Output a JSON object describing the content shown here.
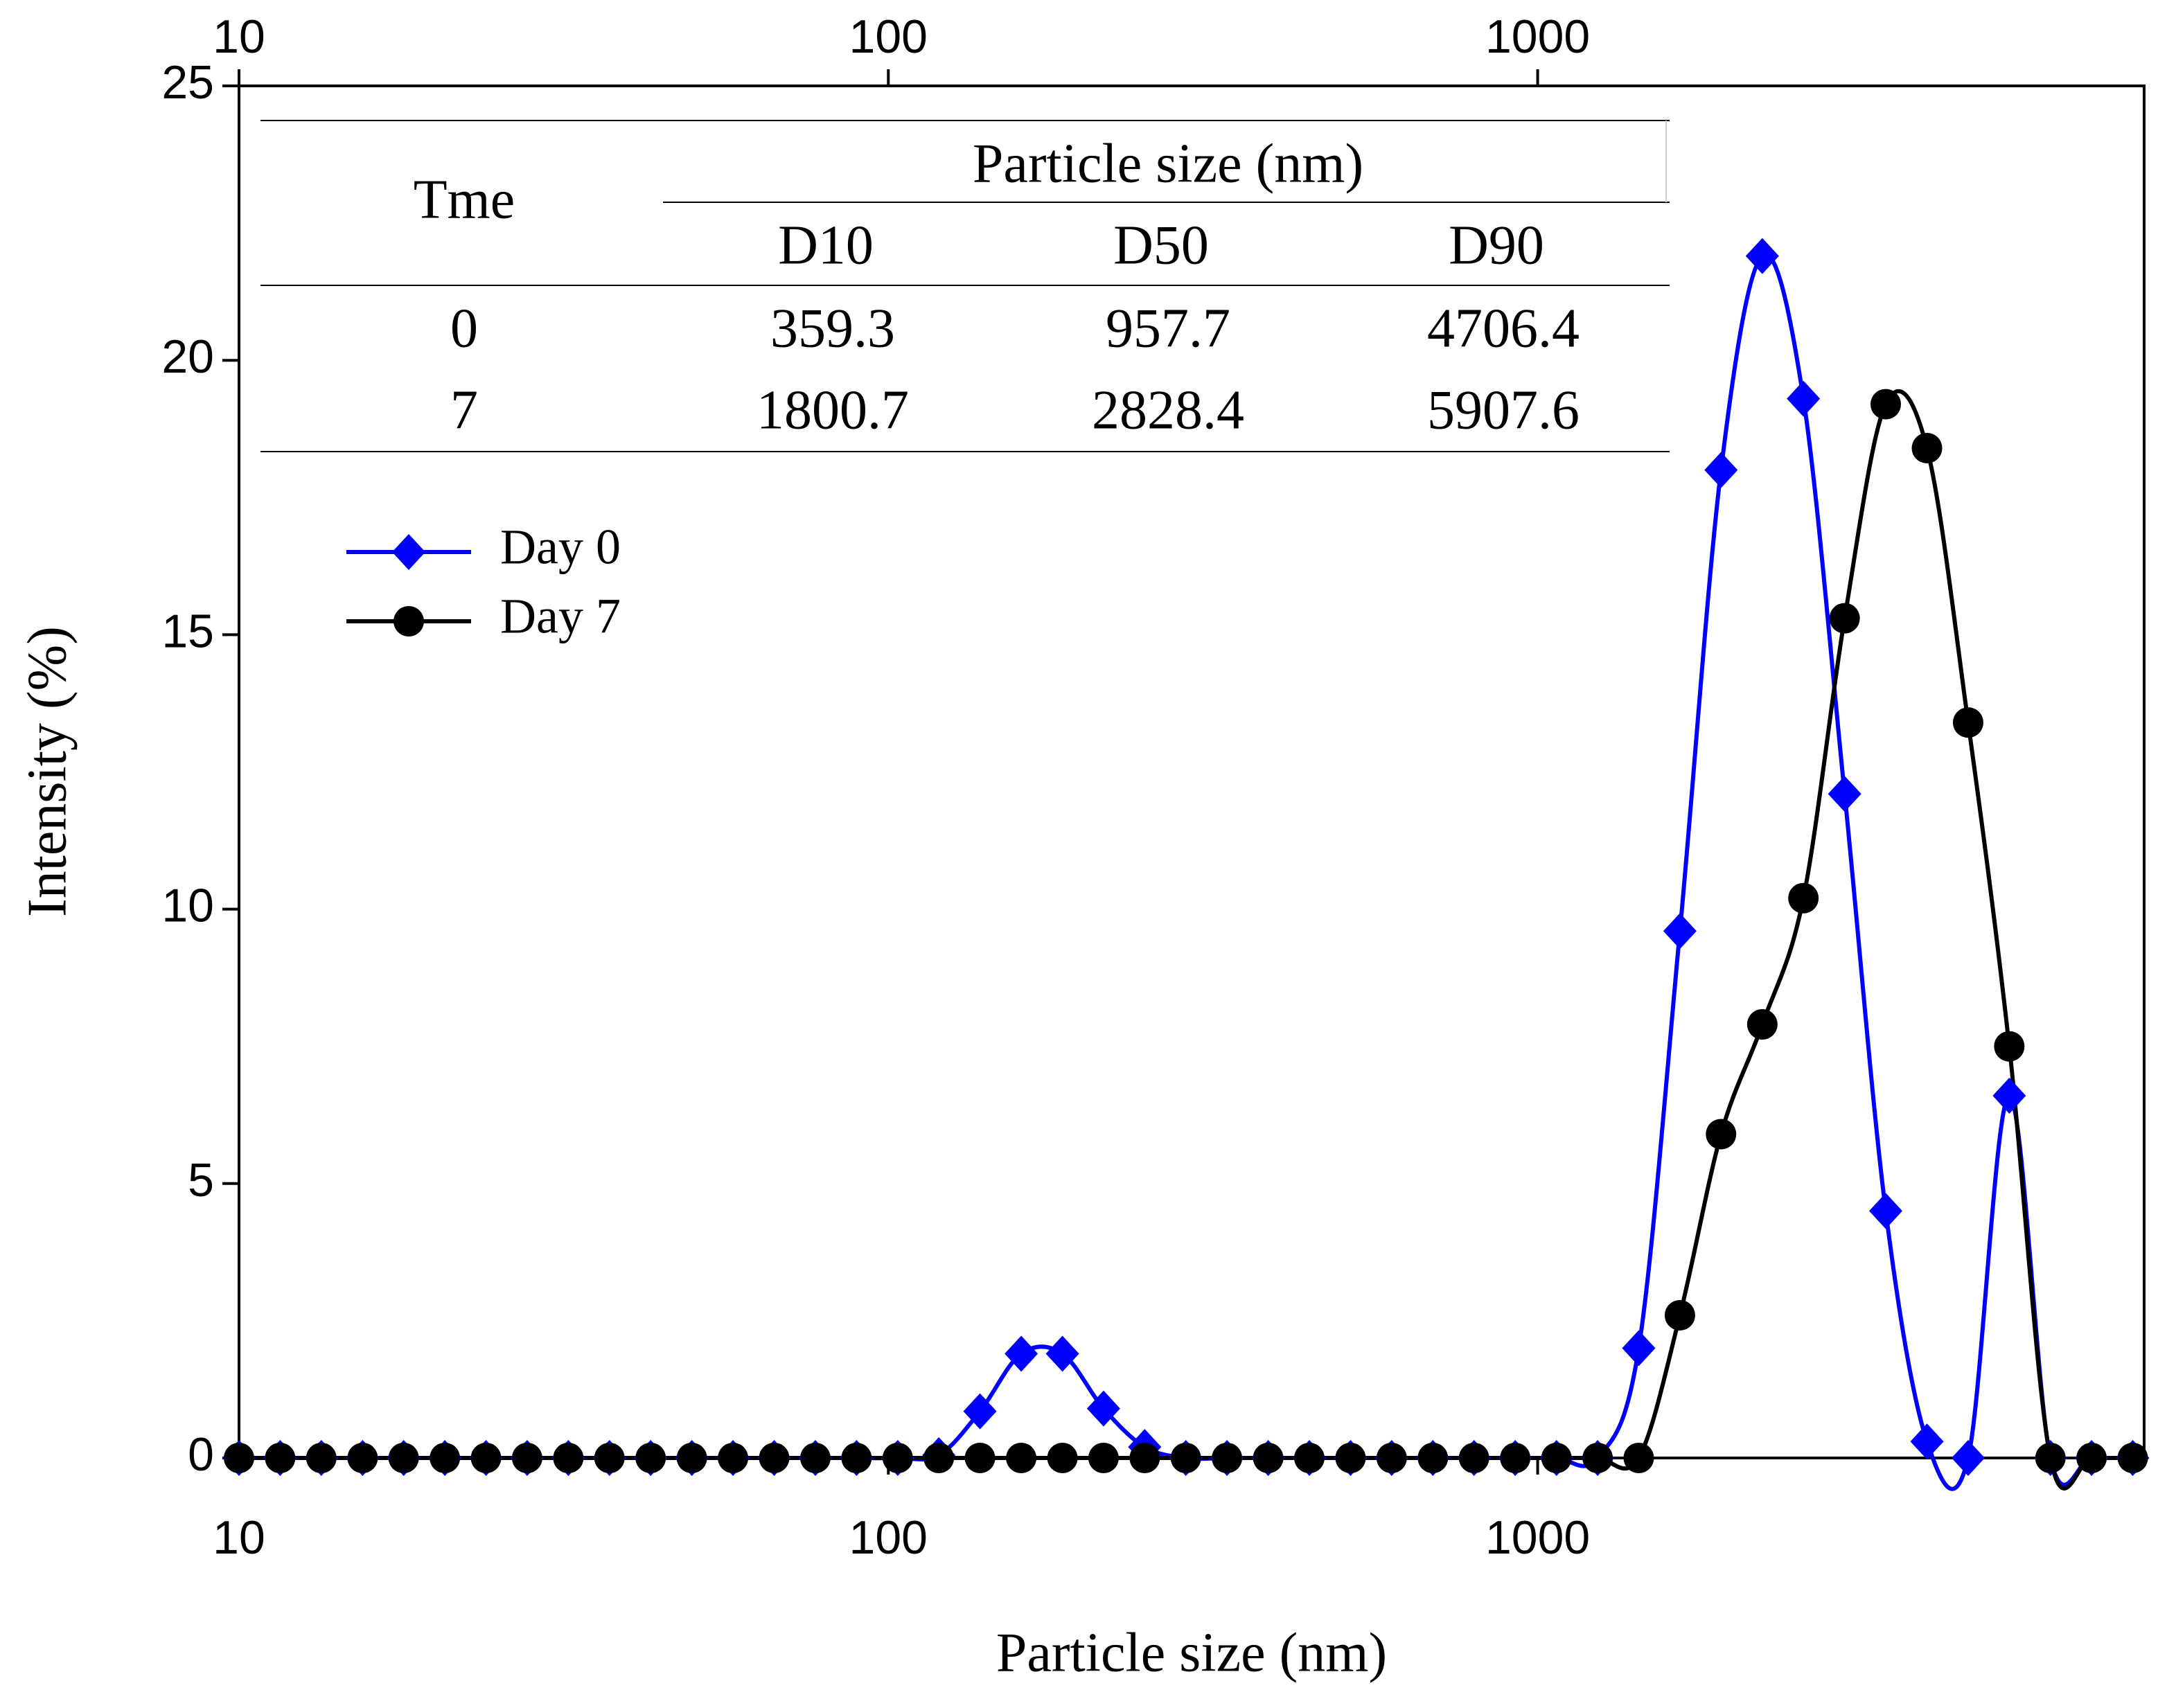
{
  "chart_data": {
    "type": "line",
    "xlabel": "Particle size (nm)",
    "ylabel": "Intensity (%)",
    "xscale": "log",
    "xlim": [
      10,
      8590
    ],
    "xticks": [
      10,
      100,
      1000
    ],
    "ylim": [
      0,
      25
    ],
    "yticks": [
      0,
      5,
      10,
      15,
      20,
      25
    ],
    "legend": "upper left",
    "x": [
      10,
      11.57,
      13.39,
      15.5,
      17.93,
      20.75,
      24.01,
      27.78,
      32.15,
      37.2,
      43.05,
      49.82,
      57.65,
      66.71,
      77.2,
      89.33,
      103.4,
      119.6,
      138.4,
      160.2,
      185.4,
      214.5,
      248.2,
      287.2,
      332.3,
      384.6,
      445,
      515,
      595.9,
      689.6,
      798,
      923.4,
      1069,
      1237,
      1431,
      1656,
      1916,
      2218,
      2566,
      2970,
      3436,
      3977,
      4602,
      5325,
      6162,
      7129,
      8250
    ],
    "series": [
      {
        "name": "Day 0",
        "color": "#0000ff",
        "marker": "diamond",
        "values": [
          0,
          0,
          0,
          0,
          0,
          0,
          0,
          0,
          0,
          0,
          0,
          0,
          0,
          0,
          0,
          0,
          0,
          0.05,
          0.85,
          1.9,
          1.9,
          0.9,
          0.2,
          0,
          0,
          0,
          0,
          0,
          0,
          0,
          0,
          0,
          0,
          0,
          2.0,
          9.6,
          18.0,
          21.9,
          19.3,
          12.1,
          4.5,
          0.3,
          0,
          6.6,
          0,
          0,
          0
        ]
      },
      {
        "name": "Day 7",
        "color": "#000000",
        "marker": "circle",
        "values": [
          0,
          0,
          0,
          0,
          0,
          0,
          0,
          0,
          0,
          0,
          0,
          0,
          0,
          0,
          0,
          0,
          0,
          0,
          0,
          0,
          0,
          0,
          0,
          0,
          0,
          0,
          0,
          0,
          0,
          0,
          0,
          0,
          0,
          0,
          0,
          2.6,
          5.9,
          7.9,
          10.2,
          15.3,
          19.2,
          18.4,
          13.4,
          7.5,
          0,
          0,
          0
        ]
      }
    ],
    "table": {
      "header": "Tme",
      "group": "Particle size (nm)",
      "columns": [
        "D10",
        "D50",
        "D90"
      ],
      "rows": [
        [
          0,
          359.3,
          957.7,
          4706.4
        ],
        [
          7,
          1800.7,
          2828.4,
          5907.6
        ]
      ]
    }
  }
}
